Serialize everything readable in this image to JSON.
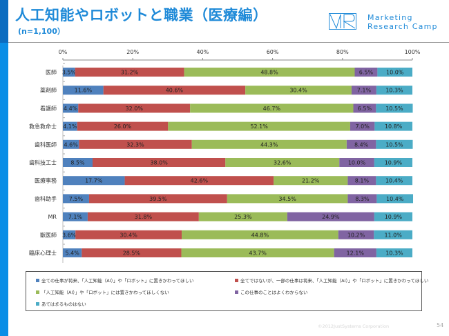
{
  "header": {
    "title": "人工知能やロボットと職業（医療編）",
    "subtitle": "(n=1,100）",
    "brand_line1": "Marketing",
    "brand_line2": "Research Camp",
    "logo_icon": "mr-logo-icon"
  },
  "colors": {
    "accent": "#1f8ad8",
    "sidebar_dark": "#0b6cc0",
    "sidebar_light": "#0a8ee6"
  },
  "chart_data": {
    "type": "bar",
    "orientation": "horizontal",
    "stacked": "percent",
    "title": "人工知能やロボットと職業（医療編）",
    "subtitle": "(n=1,100）",
    "xlabel": "",
    "ylabel": "",
    "xlim": [
      0,
      100
    ],
    "x_ticks": [
      "0%",
      "20%",
      "40%",
      "60%",
      "80%",
      "100%"
    ],
    "grid": false,
    "legend_position": "bottom",
    "categories": [
      "医師",
      "薬剤師",
      "看護師",
      "救急救命士",
      "歯科医師",
      "歯科技工士",
      "医療事務",
      "歯科助手",
      "MR",
      "獣医師",
      "臨床心理士"
    ],
    "series": [
      {
        "name": "全ての仕事が将来、「人工知能（AI）」や「ロボット」に置きかわってほしい",
        "color": "#4f81bd",
        "values": [
          3.5,
          11.6,
          4.4,
          4.1,
          4.6,
          8.5,
          17.7,
          7.5,
          7.1,
          3.6,
          5.4
        ]
      },
      {
        "name": "全てではないが、一部の仕事は将来、「人工知能（AI）」や「ロボット」に置きかわってほしい",
        "color": "#c0504d",
        "values": [
          31.2,
          40.6,
          32.0,
          26.0,
          32.3,
          38.0,
          42.6,
          39.5,
          31.8,
          30.4,
          28.5
        ]
      },
      {
        "name": "「人工知能（AI）」や「ロボット」には置きかわってほしくない",
        "color": "#9bbb59",
        "values": [
          48.8,
          30.4,
          46.7,
          52.1,
          44.3,
          32.6,
          21.2,
          34.5,
          25.3,
          44.8,
          43.7
        ]
      },
      {
        "name": "この仕事のことはよくわからない",
        "color": "#8064a2",
        "values": [
          6.5,
          7.1,
          6.5,
          7.0,
          8.4,
          10.0,
          8.1,
          8.3,
          24.9,
          10.2,
          12.1
        ]
      },
      {
        "name": "あてはまるものはない",
        "color": "#4bacc6",
        "values": [
          10.0,
          10.3,
          10.5,
          10.8,
          10.5,
          10.9,
          10.4,
          10.4,
          10.9,
          11.0,
          10.3
        ]
      }
    ]
  },
  "footer": {
    "copyright": "©2012JustSystems Corporation",
    "page_number": "54"
  }
}
